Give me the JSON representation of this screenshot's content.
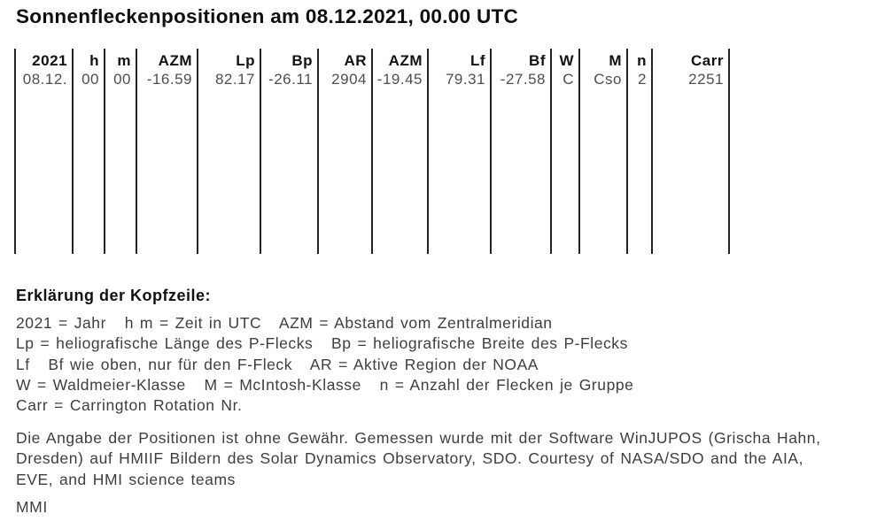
{
  "title": "Sonnenfleckenpositionen am 08.12.2021, 00.00 UTC",
  "table": {
    "columns": [
      {
        "header": "2021",
        "value": "08.12."
      },
      {
        "header": "h",
        "value": "00"
      },
      {
        "header": "m",
        "value": "00"
      },
      {
        "header": "AZM",
        "value": "-16.59"
      },
      {
        "header": "Lp",
        "value": "82.17"
      },
      {
        "header": "Bp",
        "value": "-26.11"
      },
      {
        "header": "AR",
        "value": "2904"
      },
      {
        "header": "AZM",
        "value": "-19.45"
      },
      {
        "header": "Lf",
        "value": "79.31"
      },
      {
        "header": "Bf",
        "value": "-27.58"
      },
      {
        "header": "W",
        "value": "C"
      },
      {
        "header": "M",
        "value": "Cso"
      },
      {
        "header": "n",
        "value": "2"
      },
      {
        "header": "Carr",
        "value": "2251"
      }
    ]
  },
  "explanation": {
    "heading": "Erklärung der Kopfzeile:",
    "lines": [
      "2021 = Jahr   h m = Zeit in UTC   AZM = Abstand vom Zentralmeridian",
      "Lp = heliografische Länge des P-Flecks   Bp = heliografische Breite des P-Flecks",
      "Lf   Bf wie oben, nur für den F-Fleck   AR = Aktive Region der NOAA",
      "W = Waldmeier-Klasse   M = McIntosh-Klasse   n = Anzahl der Flecken je Gruppe",
      "Carr = Carrington Rotation Nr."
    ]
  },
  "disclaimer": {
    "lines": [
      "Die Angabe der Positionen ist ohne Gewähr. Gemessen wurde mit der Software WinJUPOS (Grischa Hahn,",
      "Dresden) auf HMIIF Bildern des Solar Dynamics Observatory, SDO. Courtesy of NASA/SDO and the AIA,",
      "EVE, and HMI science teams"
    ]
  },
  "signature": "MMI",
  "colors": {
    "background": "#ffffff",
    "rule_lines": "#232323",
    "heading_text": "#0f0f0f",
    "body_text": "#3e3e3e",
    "value_text": "#4e4e4e"
  }
}
